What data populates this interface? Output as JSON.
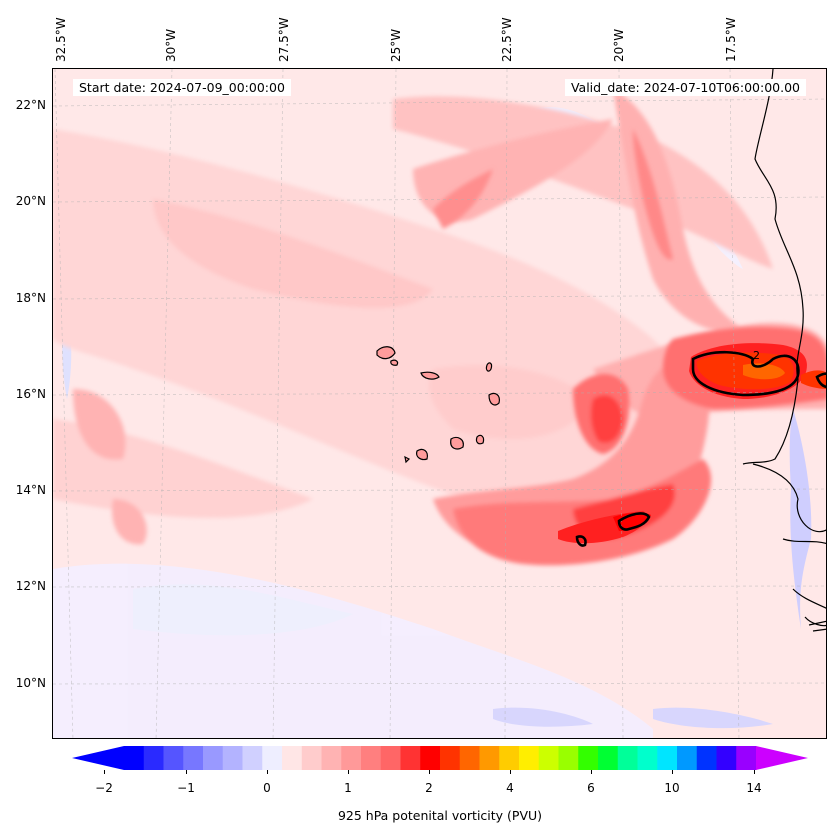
{
  "map": {
    "start_date": "Start date: 2024-07-09_00:00:00",
    "valid_date": "Valid_date: 2024-07-10T06:00:00.00",
    "lon_labels": [
      "32.5°W",
      "30°W",
      "27.5°W",
      "25°W",
      "22.5°W",
      "20°W",
      "17.5°W"
    ],
    "lat_labels": [
      "22°N",
      "20°N",
      "18°N",
      "16°N",
      "14°N",
      "12°N",
      "10°N"
    ],
    "contour_label": "2"
  },
  "colorbar": {
    "label": "925 hPa potenital vorticity (PVU)",
    "ticks": [
      "−2",
      "−1",
      "0",
      "1",
      "2",
      "4",
      "6",
      "10",
      "14"
    ],
    "colors": [
      "#0000ff",
      "#2a2aff",
      "#5555ff",
      "#7777ff",
      "#9999ff",
      "#b3b3ff",
      "#d0d0ff",
      "#eeeeff",
      "#ffe6e6",
      "#ffcccc",
      "#ffb3b3",
      "#ff9999",
      "#ff7f7f",
      "#ff6666",
      "#ff3333",
      "#ff0000",
      "#ff3300",
      "#ff6600",
      "#ff9900",
      "#ffcc00",
      "#ffee00",
      "#ccff00",
      "#99ff00",
      "#33ff00",
      "#00ff33",
      "#00ff99",
      "#00ffcc",
      "#00e5ff",
      "#0099ff",
      "#0033ff",
      "#3300ff",
      "#9900ff"
    ],
    "arrow_left_color": "#0000ff",
    "arrow_right_color": "#cc00ff"
  }
}
